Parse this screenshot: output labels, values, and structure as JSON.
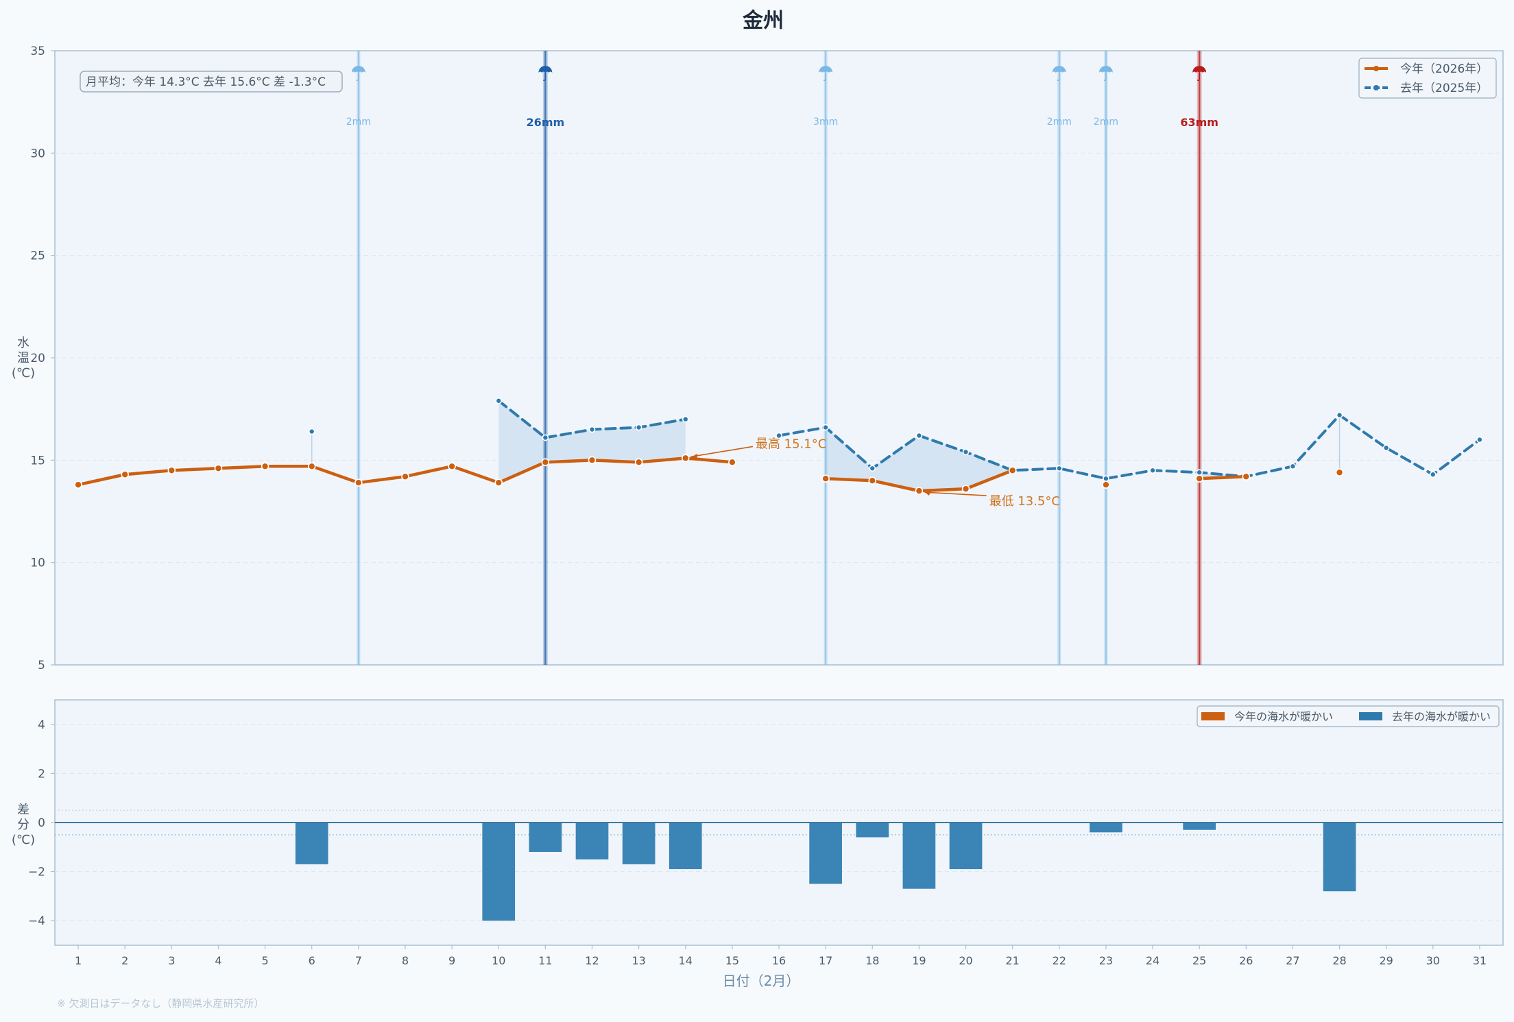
{
  "chart_data": [
    {
      "type": "line",
      "title": "金州",
      "ylabel": "水温(℃)",
      "ylabel_chars": [
        "水",
        "温",
        "(℃)"
      ],
      "ylim": [
        5,
        35
      ],
      "yticks": [
        5,
        10,
        15,
        20,
        25,
        30,
        35
      ],
      "x": [
        1,
        2,
        3,
        4,
        5,
        6,
        7,
        8,
        9,
        10,
        11,
        12,
        13,
        14,
        15,
        16,
        17,
        18,
        19,
        20,
        21,
        22,
        23,
        24,
        25,
        26,
        27,
        28,
        29,
        30,
        31
      ],
      "series": [
        {
          "name": "今年（2026年）",
          "color": "#cc5f10",
          "style": "solid",
          "values": [
            13.8,
            14.3,
            14.5,
            14.6,
            14.7,
            14.7,
            13.9,
            14.2,
            14.7,
            13.9,
            14.9,
            15.0,
            14.9,
            15.1,
            14.9,
            null,
            14.1,
            14.0,
            13.5,
            13.6,
            14.5,
            null,
            13.8,
            null,
            14.1,
            14.2,
            null,
            14.4,
            null,
            null,
            null
          ]
        },
        {
          "name": "去年（2025年）",
          "color": "#2f7aad",
          "style": "dashed",
          "values": [
            null,
            null,
            null,
            null,
            null,
            16.4,
            null,
            null,
            null,
            17.9,
            16.1,
            16.5,
            16.6,
            17.0,
            null,
            16.2,
            16.6,
            14.6,
            16.2,
            15.4,
            14.5,
            14.6,
            14.1,
            14.5,
            14.4,
            14.2,
            14.7,
            17.2,
            15.6,
            14.3,
            16.0
          ]
        }
      ],
      "rain": [
        {
          "day": 7,
          "label": "2mm",
          "color": "#7ab9e6",
          "icon": "umbrella-icon"
        },
        {
          "day": 11,
          "label": "26mm",
          "color": "#1f5fa8",
          "icon": "umbrella-icon"
        },
        {
          "day": 17,
          "label": "3mm",
          "color": "#7ab9e6",
          "icon": "umbrella-icon"
        },
        {
          "day": 22,
          "label": "2mm",
          "color": "#7ab9e6",
          "icon": "umbrella-icon"
        },
        {
          "day": 23,
          "label": "2mm",
          "color": "#7ab9e6",
          "icon": "umbrella-icon"
        },
        {
          "day": 25,
          "label": "63mm",
          "color": "#b81c1c",
          "icon": "umbrella-icon"
        }
      ],
      "annotations": [
        {
          "day": 14,
          "value": 15.1,
          "text": "最高 15.1°C",
          "text_day": 15.5,
          "text_value": 15.8
        },
        {
          "day": 19,
          "value": 13.5,
          "text": "最低 13.5°C",
          "text_day": 20.5,
          "text_value": 13.0
        }
      ],
      "summary": "月平均：今年 14.3°C  去年 15.6°C  差 -1.3°C",
      "legend": [
        "今年（2026年）",
        "去年（2025年）"
      ],
      "legend_position": "top-right"
    },
    {
      "type": "bar",
      "ylabel": "差分(℃)",
      "ylabel_chars": [
        "差",
        "分",
        "(℃)"
      ],
      "ylim": [
        -5,
        5
      ],
      "yticks": [
        -4,
        -2,
        0,
        2,
        4
      ],
      "ytick_labels": [
        "−4",
        "−2",
        "0",
        "2",
        "4"
      ],
      "ref_lines": [
        0.5,
        -0.5
      ],
      "x": [
        1,
        2,
        3,
        4,
        5,
        6,
        7,
        8,
        9,
        10,
        11,
        12,
        13,
        14,
        15,
        16,
        17,
        18,
        19,
        20,
        21,
        22,
        23,
        24,
        25,
        26,
        27,
        28,
        29,
        30,
        31
      ],
      "values": [
        null,
        null,
        null,
        null,
        null,
        -1.7,
        null,
        null,
        null,
        -4.0,
        -1.2,
        -1.5,
        -1.7,
        -1.9,
        null,
        null,
        -2.5,
        -0.6,
        -2.7,
        -1.9,
        null,
        null,
        -0.4,
        null,
        -0.3,
        null,
        null,
        -2.8,
        null,
        null,
        null
      ],
      "legend": [
        {
          "label": "今年の海水が暖かい",
          "color": "#cc5f10"
        },
        {
          "label": "去年の海水が暖かい",
          "color": "#2f7aad"
        }
      ],
      "legend_position": "top-right",
      "xlabel": "日付（2月）"
    }
  ],
  "footnote": "※ 欠測日はデータなし（静岡県水産研究所）",
  "colors": {
    "this_year": "#cc5f10",
    "last_year": "#2f7aad",
    "fill_gap": "#cfe1f0",
    "axis": "#a9bfcf",
    "text": "#4a5a6a",
    "title": "#1e2a3a"
  }
}
